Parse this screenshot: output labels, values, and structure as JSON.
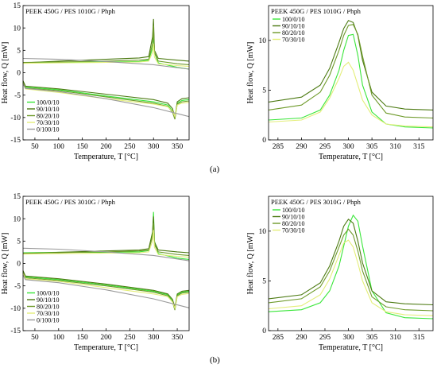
{
  "colors": {
    "100/0/10": "#39e639",
    "90/10/10": "#4c7a12",
    "80/20/10": "#6e9a2a",
    "70/30/10": "#e4ee7a",
    "0/100/10": "#9a9a9a"
  },
  "captions": {
    "a": "(a)",
    "b": "(b)"
  },
  "chart_data": [
    {
      "id": "a-left",
      "type": "line",
      "title": "PEEK 450G / PES 1010G / Phph",
      "xlabel": "Temperature, T [°C]",
      "ylabel": "Heat flow, Q [mW]",
      "xlim": [
        25,
        375
      ],
      "ylim": [
        -15,
        15
      ],
      "xticks": [
        "50",
        "100",
        "150",
        "200",
        "250",
        "300",
        "350"
      ],
      "yticks": [
        "-15",
        "-10",
        "-5",
        "0",
        "5",
        "10",
        "15"
      ],
      "legend": "bottom-left",
      "legend_entries": [
        "100/0/10",
        "90/10/10",
        "80/20/10",
        "70/30/10",
        "0/100/10"
      ],
      "series": [
        {
          "name": "100/0/10",
          "x": [
            25,
            100,
            200,
            270,
            290,
            298,
            300,
            302,
            310,
            350,
            375
          ],
          "y": [
            2.2,
            2.3,
            2.4,
            2.5,
            2.8,
            5.5,
            8.5,
            4.5,
            2.2,
            1.2,
            0.8
          ]
        },
        {
          "name": "90/10/10",
          "x": [
            25,
            100,
            200,
            270,
            290,
            298,
            300,
            302,
            310,
            350,
            375
          ],
          "y": [
            2.2,
            2.6,
            3.0,
            3.3,
            3.6,
            8.0,
            12.0,
            5.0,
            3.2,
            2.8,
            2.6
          ]
        },
        {
          "name": "80/20/10",
          "x": [
            25,
            100,
            200,
            270,
            290,
            298,
            300,
            302,
            310,
            350,
            375
          ],
          "y": [
            2.3,
            2.4,
            2.6,
            2.8,
            3.0,
            6.5,
            10.5,
            4.5,
            2.6,
            2.0,
            1.8
          ]
        },
        {
          "name": "70/30/10",
          "x": [
            25,
            100,
            200,
            270,
            290,
            298,
            300,
            302,
            310,
            350,
            375
          ],
          "y": [
            2.1,
            2.2,
            2.3,
            2.4,
            2.6,
            4.5,
            6.5,
            3.5,
            2.0,
            1.6,
            1.4
          ]
        },
        {
          "name": "0/100/10",
          "x": [
            25,
            100,
            200,
            300,
            375
          ],
          "y": [
            3.2,
            3.0,
            2.5,
            1.8,
            0.8
          ]
        },
        {
          "name": "100/0/10",
          "x": [
            25,
            30,
            100,
            200,
            300,
            330,
            340,
            345,
            350,
            360,
            375
          ],
          "y": [
            -2.0,
            -3.2,
            -3.8,
            -5.2,
            -6.5,
            -7.2,
            -8.5,
            -10.2,
            -6.8,
            -6.2,
            -6.0
          ]
        },
        {
          "name": "90/10/10",
          "x": [
            25,
            30,
            100,
            200,
            300,
            330,
            340,
            345,
            350,
            360,
            375
          ],
          "y": [
            -1.8,
            -3.0,
            -3.6,
            -4.8,
            -6.0,
            -6.8,
            -8.0,
            -10.0,
            -6.5,
            -5.8,
            -5.6
          ]
        },
        {
          "name": "80/20/10",
          "x": [
            25,
            30,
            100,
            200,
            300,
            330,
            340,
            345,
            350,
            360,
            375
          ],
          "y": [
            -2.2,
            -3.4,
            -4.0,
            -5.4,
            -6.8,
            -7.5,
            -8.8,
            -10.4,
            -7.0,
            -6.5,
            -6.3
          ]
        },
        {
          "name": "70/30/10",
          "x": [
            25,
            30,
            100,
            200,
            300,
            330,
            340,
            345,
            350,
            360,
            375
          ],
          "y": [
            -2.4,
            -3.6,
            -4.4,
            -5.8,
            -7.0,
            -7.6,
            -8.6,
            -9.8,
            -7.2,
            -6.8,
            -6.6
          ]
        },
        {
          "name": "0/100/10",
          "x": [
            25,
            30,
            100,
            200,
            300,
            375
          ],
          "y": [
            -2.5,
            -3.5,
            -4.2,
            -5.8,
            -7.8,
            -9.8
          ]
        }
      ]
    },
    {
      "id": "a-right",
      "type": "line",
      "title": "PEEK 450G / PES 1010G / Phph",
      "xlabel": "Temperature, T [°C]",
      "ylabel": "Heat flow, Q [mW]",
      "xlim": [
        283,
        318
      ],
      "ylim": [
        0,
        13.5
      ],
      "xticks": [
        "285",
        "290",
        "295",
        "300",
        "305",
        "310",
        "315"
      ],
      "yticks": [
        "0",
        "5",
        "10"
      ],
      "legend": "top-left",
      "legend_entries": [
        "100/0/10",
        "90/10/10",
        "80/20/10",
        "70/30/10"
      ],
      "series": [
        {
          "name": "100/0/10",
          "x": [
            283,
            290,
            294,
            296,
            298,
            299,
            300,
            301,
            302,
            303,
            305,
            308,
            312,
            318
          ],
          "y": [
            2.0,
            2.2,
            3.0,
            4.5,
            7.0,
            9.0,
            10.5,
            10.6,
            8.5,
            5.5,
            2.8,
            1.6,
            1.3,
            1.2
          ]
        },
        {
          "name": "90/10/10",
          "x": [
            283,
            290,
            294,
            296,
            298,
            299,
            300,
            301,
            302,
            303,
            305,
            308,
            312,
            318
          ],
          "y": [
            3.8,
            4.3,
            5.5,
            7.2,
            9.8,
            11.2,
            12.0,
            11.8,
            10.5,
            8.0,
            4.8,
            3.4,
            3.1,
            3.0
          ]
        },
        {
          "name": "80/20/10",
          "x": [
            283,
            290,
            294,
            296,
            298,
            299,
            300,
            301,
            302,
            303,
            305,
            308,
            312,
            318
          ],
          "y": [
            3.0,
            3.5,
            4.8,
            6.5,
            9.0,
            10.5,
            11.5,
            11.6,
            10.6,
            8.4,
            4.5,
            2.7,
            2.3,
            2.2
          ]
        },
        {
          "name": "70/30/10",
          "x": [
            283,
            290,
            294,
            296,
            298,
            299,
            300,
            301,
            302,
            303,
            305,
            308,
            312,
            318
          ],
          "y": [
            1.8,
            2.0,
            2.8,
            4.2,
            6.2,
            7.4,
            7.8,
            7.0,
            5.5,
            4.0,
            2.5,
            1.6,
            1.4,
            1.3
          ]
        }
      ]
    },
    {
      "id": "b-left",
      "type": "line",
      "title": "PEEK 450G / PES 3010G / Phph",
      "xlabel": "Temperature, T [°C]",
      "ylabel": "Heat flow, Q [mW]",
      "xlim": [
        25,
        375
      ],
      "ylim": [
        -15,
        15
      ],
      "xticks": [
        "50",
        "100",
        "150",
        "200",
        "250",
        "300",
        "350"
      ],
      "yticks": [
        "-15",
        "-10",
        "-5",
        "0",
        "5",
        "10",
        "15"
      ],
      "legend": "bottom-left",
      "legend_entries": [
        "100/0/10",
        "90/10/10",
        "80/20/10",
        "70/30/10",
        "0/100/10"
      ],
      "series": [
        {
          "name": "100/0/10",
          "x": [
            25,
            100,
            200,
            270,
            290,
            298,
            300,
            302,
            310,
            350,
            375
          ],
          "y": [
            2.4,
            2.5,
            2.5,
            2.6,
            2.9,
            7.0,
            11.5,
            5.0,
            2.2,
            1.2,
            0.9
          ]
        },
        {
          "name": "90/10/10",
          "x": [
            25,
            100,
            200,
            270,
            290,
            298,
            300,
            302,
            310,
            350,
            375
          ],
          "y": [
            2.2,
            2.5,
            2.8,
            3.0,
            3.3,
            7.0,
            10.5,
            4.8,
            3.0,
            2.6,
            2.4
          ]
        },
        {
          "name": "80/20/10",
          "x": [
            25,
            100,
            200,
            270,
            290,
            298,
            300,
            302,
            310,
            350,
            375
          ],
          "y": [
            2.3,
            2.4,
            2.6,
            2.8,
            3.0,
            6.0,
            9.0,
            4.2,
            2.6,
            2.0,
            1.8
          ]
        },
        {
          "name": "70/30/10",
          "x": [
            25,
            100,
            200,
            270,
            290,
            298,
            300,
            302,
            310,
            350,
            375
          ],
          "y": [
            2.1,
            2.2,
            2.3,
            2.4,
            2.6,
            5.0,
            7.5,
            3.6,
            2.0,
            1.6,
            1.4
          ]
        },
        {
          "name": "0/100/10",
          "x": [
            25,
            100,
            200,
            300,
            375
          ],
          "y": [
            3.4,
            3.2,
            2.6,
            1.8,
            0.6
          ]
        },
        {
          "name": "100/0/10",
          "x": [
            25,
            30,
            100,
            200,
            300,
            330,
            340,
            345,
            350,
            360,
            375
          ],
          "y": [
            -1.8,
            -3.0,
            -3.6,
            -4.8,
            -6.2,
            -7.0,
            -8.4,
            -10.2,
            -7.0,
            -6.4,
            -6.2
          ]
        },
        {
          "name": "90/10/10",
          "x": [
            25,
            30,
            100,
            200,
            300,
            330,
            340,
            345,
            350,
            360,
            375
          ],
          "y": [
            -1.6,
            -2.8,
            -3.4,
            -4.6,
            -6.0,
            -6.8,
            -8.0,
            -9.8,
            -6.8,
            -6.2,
            -6.0
          ]
        },
        {
          "name": "80/20/10",
          "x": [
            25,
            30,
            100,
            200,
            300,
            330,
            340,
            345,
            350,
            360,
            375
          ],
          "y": [
            -2.0,
            -3.2,
            -3.8,
            -5.0,
            -6.4,
            -7.2,
            -8.6,
            -10.4,
            -7.2,
            -6.6,
            -6.4
          ]
        },
        {
          "name": "70/30/10",
          "x": [
            25,
            30,
            100,
            200,
            300,
            330,
            340,
            345,
            350,
            360,
            375
          ],
          "y": [
            -2.2,
            -3.4,
            -4.0,
            -5.4,
            -6.8,
            -7.4,
            -8.6,
            -10.0,
            -7.4,
            -6.9,
            -6.7
          ]
        },
        {
          "name": "0/100/10",
          "x": [
            25,
            30,
            100,
            200,
            300,
            375
          ],
          "y": [
            -2.6,
            -3.6,
            -4.3,
            -5.9,
            -7.9,
            -9.9
          ]
        }
      ]
    },
    {
      "id": "b-right",
      "type": "line",
      "title": "PEEK 450G / PES 3010G / Phph",
      "xlabel": "Temperature, T [°C]",
      "ylabel": "Heat flow, Q [mW]",
      "xlim": [
        283,
        318
      ],
      "ylim": [
        0,
        13.5
      ],
      "xticks": [
        "285",
        "290",
        "295",
        "300",
        "305",
        "310",
        "315"
      ],
      "yticks": [
        "0",
        "5",
        "10"
      ],
      "legend": "top-left",
      "legend_entries": [
        "100/0/10",
        "90/10/10",
        "80/20/10",
        "70/30/10"
      ],
      "series": [
        {
          "name": "100/0/10",
          "x": [
            283,
            290,
            294,
            296,
            298,
            299,
            300,
            301,
            302,
            303,
            305,
            308,
            312,
            318
          ],
          "y": [
            1.9,
            2.1,
            2.8,
            4.0,
            6.5,
            8.5,
            10.5,
            11.6,
            11.0,
            8.5,
            4.0,
            1.8,
            1.3,
            1.2
          ]
        },
        {
          "name": "90/10/10",
          "x": [
            283,
            290,
            294,
            296,
            298,
            299,
            300,
            301,
            302,
            303,
            305,
            308,
            312,
            318
          ],
          "y": [
            3.2,
            3.6,
            4.8,
            6.5,
            9.0,
            10.5,
            11.2,
            10.8,
            9.0,
            6.8,
            4.0,
            2.9,
            2.7,
            2.6
          ]
        },
        {
          "name": "80/20/10",
          "x": [
            283,
            290,
            294,
            296,
            298,
            299,
            300,
            301,
            302,
            303,
            305,
            308,
            312,
            318
          ],
          "y": [
            2.8,
            3.2,
            4.4,
            6.0,
            8.4,
            9.6,
            10.2,
            9.6,
            8.0,
            6.0,
            3.4,
            2.4,
            2.1,
            2.0
          ]
        },
        {
          "name": "70/30/10",
          "x": [
            283,
            290,
            294,
            296,
            298,
            299,
            300,
            301,
            302,
            303,
            305,
            308,
            312,
            318
          ],
          "y": [
            2.2,
            2.5,
            3.6,
            5.2,
            7.6,
            8.8,
            9.1,
            8.4,
            6.8,
            5.0,
            2.8,
            1.9,
            1.6,
            1.5
          ]
        }
      ]
    }
  ]
}
